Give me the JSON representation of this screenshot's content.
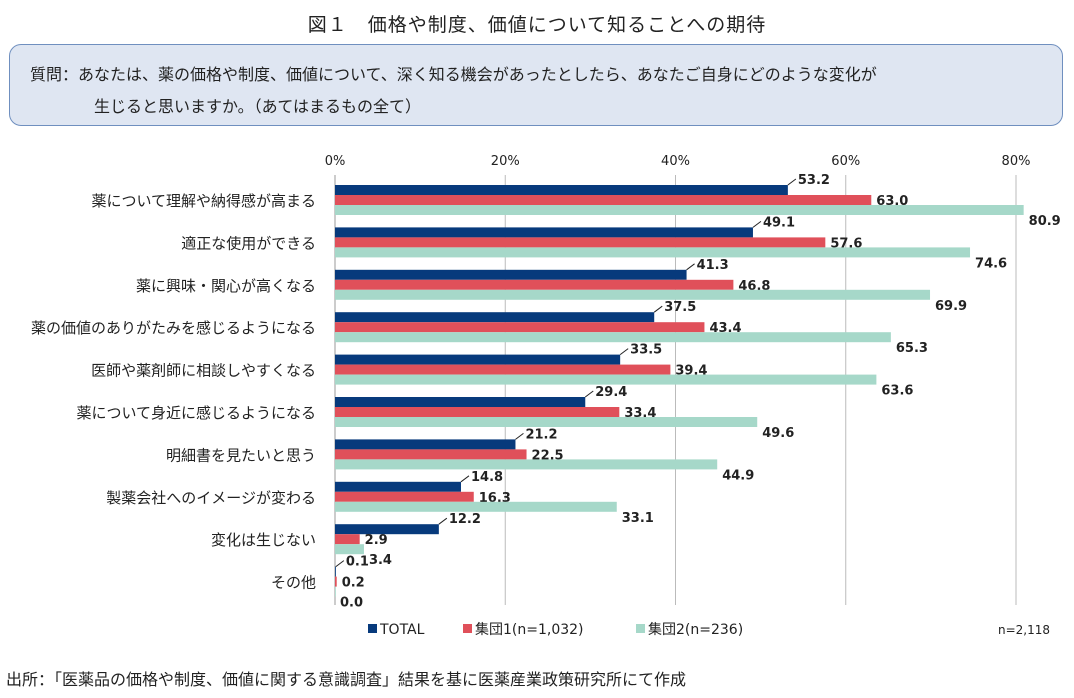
{
  "title": "図１　価格や制度、価値について知ることへの期待",
  "question": {
    "line1": "質問：あなたは、薬の価格や制度、価値について、深く知る機会があったとしたら、あなたご自身にどのような変化が",
    "line2": "生じると思いますか。（あてはまるもの全て）"
  },
  "source": "出所：「医薬品の価格や制度、価値に関する意識調査」結果を基に医薬産業政策研究所にて作成",
  "chart_data": {
    "type": "bar",
    "orientation": "horizontal",
    "categories": [
      "薬について理解や納得感が高まる",
      "適正な使用ができる",
      "薬に興味・関心が高くなる",
      "薬の価値のありがたみを感じるようになる",
      "医師や薬剤師に相談しやすくなる",
      "薬について身近に感じるようになる",
      "明細書を見たいと思う",
      "製薬会社へのイメージが変わる",
      "変化は生じない",
      "その他"
    ],
    "series": [
      {
        "name": "TOTAL",
        "color": "#073a7c",
        "values": [
          53.2,
          49.1,
          41.3,
          37.5,
          33.5,
          29.4,
          21.2,
          14.8,
          12.2,
          0.1
        ]
      },
      {
        "name": "集団1(n=1,032)",
        "color": "#e0505a",
        "values": [
          63.0,
          57.6,
          46.8,
          43.4,
          39.4,
          33.4,
          22.5,
          16.3,
          2.9,
          0.2
        ]
      },
      {
        "name": "集団2(n=236)",
        "color": "#a6d8c9",
        "values": [
          80.9,
          74.6,
          69.9,
          65.3,
          63.6,
          49.6,
          44.9,
          33.1,
          3.4,
          0.0
        ]
      }
    ],
    "xticks": [
      "0%",
      "20%",
      "40%",
      "60%",
      "80%"
    ],
    "xlim": [
      0,
      80
    ],
    "grid": true,
    "legend": "bottom",
    "note": "n=2,118"
  }
}
